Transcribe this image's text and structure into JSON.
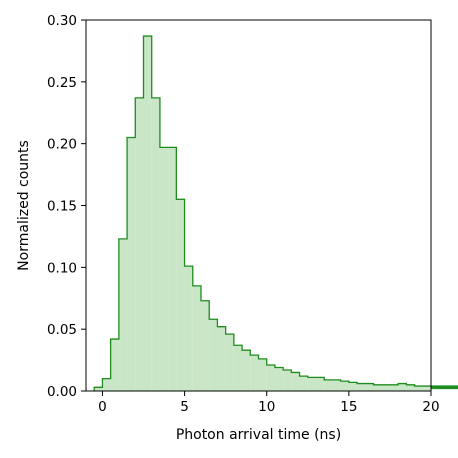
{
  "chart_data": {
    "type": "histogram",
    "title": "",
    "xlabel": "Photon arrival time (ns)",
    "ylabel": "Normalized counts",
    "xlim": [
      -1.0,
      20.0
    ],
    "ylim": [
      0.0,
      0.3
    ],
    "grid": false,
    "bin_width": 0.5,
    "bins_start": -0.5,
    "bar_fill_color": "#c9e6c6",
    "bar_edge_color": "#1e8c1e",
    "x_ticks": [
      0,
      5,
      10,
      15,
      20
    ],
    "x_tick_labels": [
      "0",
      "5",
      "10",
      "15",
      "20"
    ],
    "y_ticks": [
      0.0,
      0.05,
      0.1,
      0.15,
      0.2,
      0.25,
      0.3
    ],
    "y_tick_labels": [
      "0.00",
      "0.05",
      "0.10",
      "0.15",
      "0.20",
      "0.25",
      "0.30"
    ],
    "values": [
      0.003,
      0.01,
      0.042,
      0.123,
      0.205,
      0.237,
      0.287,
      0.237,
      0.197,
      0.197,
      0.155,
      0.101,
      0.085,
      0.073,
      0.058,
      0.052,
      0.046,
      0.037,
      0.033,
      0.029,
      0.026,
      0.021,
      0.019,
      0.017,
      0.015,
      0.012,
      0.011,
      0.011,
      0.009,
      0.009,
      0.008,
      0.007,
      0.006,
      0.006,
      0.005,
      0.005,
      0.005,
      0.006,
      0.005,
      0.004,
      0.004,
      0.004,
      0.003,
      0.003,
      0.003,
      0.004,
      0.003,
      0.003,
      0.002,
      0.003,
      0.002,
      0.003
    ]
  }
}
